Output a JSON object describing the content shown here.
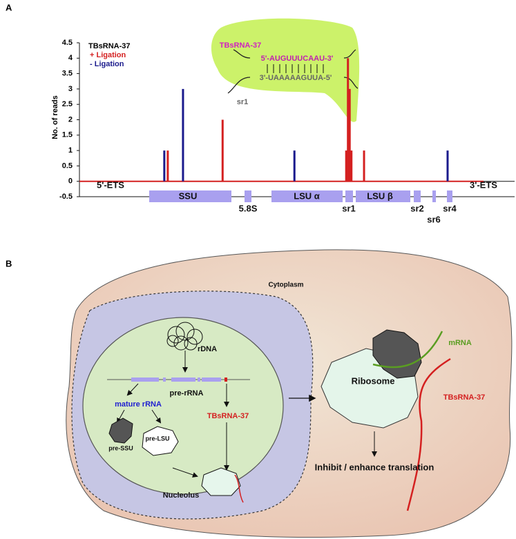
{
  "panels": [
    "A",
    "B"
  ],
  "chart_data": {
    "type": "bar",
    "y_label": "No. of reads",
    "legend_title": "TBsRNA-37",
    "ylim": [
      -0.5,
      4.5
    ],
    "yticks": [
      -0.5,
      0,
      0.5,
      1,
      1.5,
      2,
      2.5,
      3,
      3.5,
      4,
      4.5
    ],
    "xlim": [
      0,
      100
    ],
    "series": [
      {
        "name": "+ Ligation",
        "color": "#d42020",
        "x": [
          20.3,
          32.9,
          61.3,
          61.7,
          62.1,
          62.5,
          65.4
        ],
        "values": [
          1,
          2,
          1,
          4,
          3,
          1,
          1
        ]
      },
      {
        "name": "- Ligation",
        "color": "#1a1a8c",
        "x": [
          19.5,
          23.8,
          49.4,
          84.6
        ],
        "values": [
          1,
          3,
          1,
          1
        ]
      }
    ],
    "regions": [
      "5'-ETS",
      "SSU",
      "5.8S",
      "LSU α",
      "sr1",
      "LSU β",
      "sr2",
      "sr6",
      "sr4",
      "3'-ETS"
    ],
    "inset": {
      "title": "TBsRNA-37",
      "top_strand": "5'-AUGUUUCAAU-3'",
      "bottom_strand": "3'-UAAAAAGUUA-5'",
      "label": "sr1"
    }
  },
  "diagram": {
    "cytoplasm": "Cytoplasm",
    "rdna": "rDNA",
    "pre_rrna": "pre-rRNA",
    "mature_rrna": "mature rRNA",
    "tbsrna_nucleolus": "TBsRNA-37",
    "pre_ssu": "pre-SSU",
    "pre_lsu": "pre-LSU",
    "nucleolus": "Nucleolus",
    "ribosome": "Ribosome",
    "mrna": "mRNA",
    "tbsrna_ribosome": "TBsRNA-37",
    "outcome": "Inhibit / enhance translation"
  }
}
